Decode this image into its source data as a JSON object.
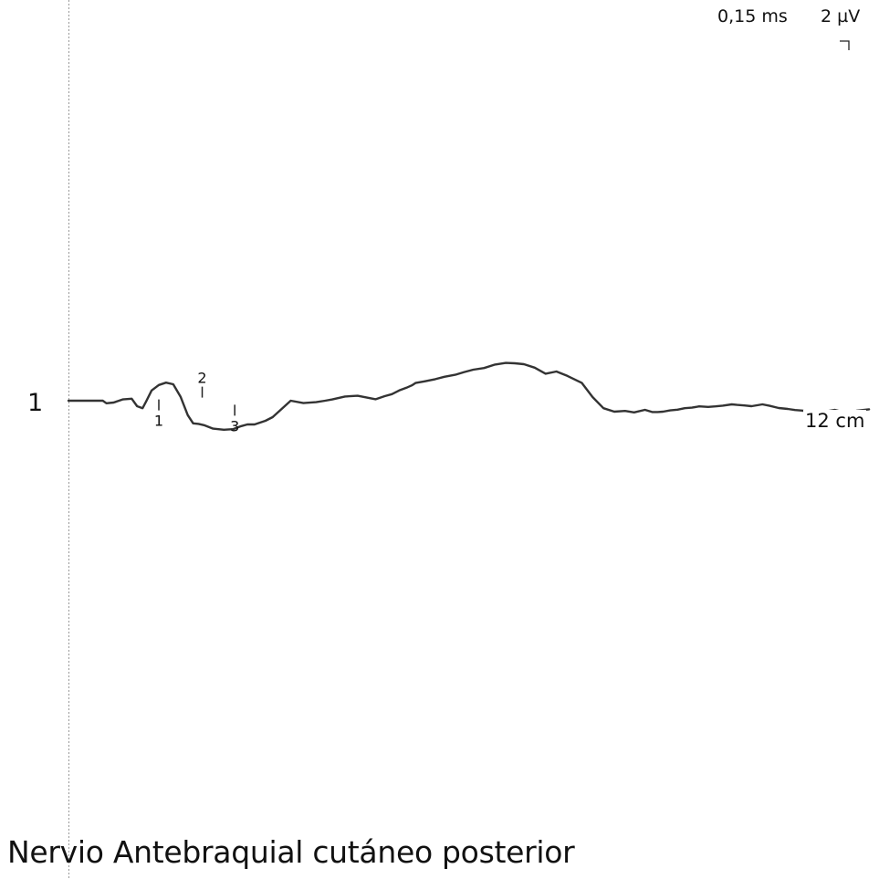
{
  "title": "Nervio Antebraquial cutáneo posterior",
  "scale": {
    "time": "0,15 ms",
    "amplitude": "2 µV"
  },
  "trace": {
    "label": "1",
    "distance": "12 cm"
  },
  "colors": {
    "trace": "#333333",
    "baseline": "#9a9a9a"
  },
  "chart_data": {
    "type": "line",
    "title": "Nervio Antebraquial cutáneo posterior",
    "x_unit": "ms",
    "y_unit": "µV",
    "x_per_div": 0.15,
    "y_per_div": 2,
    "xlim": [
      0,
      4.47
    ],
    "series": [
      {
        "name": "1",
        "x": [
          0.0,
          0.19,
          0.21,
          0.25,
          0.3,
          0.35,
          0.38,
          0.41,
          0.43,
          0.46,
          0.5,
          0.54,
          0.58,
          0.62,
          0.66,
          0.69,
          0.72,
          0.75,
          0.8,
          0.86,
          0.91,
          0.95,
          0.99,
          1.03,
          1.09,
          1.13,
          1.23,
          1.3,
          1.37,
          1.42,
          1.46,
          1.53,
          1.6,
          1.7,
          1.75,
          1.79,
          1.83,
          1.87,
          1.9,
          1.92,
          1.97,
          2.03,
          2.08,
          2.14,
          2.19,
          2.24,
          2.3,
          2.36,
          2.42,
          2.47,
          2.52,
          2.58,
          2.64,
          2.7,
          2.76,
          2.84,
          2.9,
          2.96,
          3.02,
          3.08,
          3.13,
          3.19,
          3.23,
          3.26,
          3.29,
          3.33,
          3.37,
          3.41,
          3.45,
          3.49,
          3.54,
          3.58,
          3.62,
          3.67,
          3.7,
          3.74,
          3.78,
          3.81,
          3.84,
          3.88,
          3.93,
          3.98,
          4.02,
          4.06,
          4.12,
          4.18,
          4.24,
          4.3,
          4.36,
          4.43
        ],
        "y": [
          0.0,
          0.0,
          -0.14,
          -0.1,
          0.07,
          0.11,
          -0.3,
          -0.41,
          -0.04,
          0.56,
          0.86,
          0.99,
          0.9,
          0.22,
          -0.79,
          -1.24,
          -1.27,
          -1.34,
          -1.53,
          -1.59,
          -1.56,
          -1.41,
          -1.3,
          -1.3,
          -1.1,
          -0.9,
          0.0,
          -0.13,
          -0.08,
          0.0,
          0.07,
          0.23,
          0.27,
          0.08,
          0.25,
          0.36,
          0.56,
          0.71,
          0.84,
          0.97,
          1.06,
          1.18,
          1.31,
          1.42,
          1.57,
          1.7,
          1.79,
          1.98,
          2.07,
          2.05,
          2.0,
          1.81,
          1.48,
          1.6,
          1.36,
          0.98,
          0.2,
          -0.41,
          -0.6,
          -0.56,
          -0.64,
          -0.5,
          -0.62,
          -0.62,
          -0.6,
          -0.53,
          -0.49,
          -0.41,
          -0.38,
          -0.31,
          -0.34,
          -0.31,
          -0.27,
          -0.2,
          -0.23,
          -0.26,
          -0.3,
          -0.25,
          -0.2,
          -0.28,
          -0.4,
          -0.45,
          -0.51,
          -0.54,
          -0.67,
          -0.6,
          -0.5,
          -0.65,
          -0.55,
          -0.47
        ]
      }
    ],
    "markers": [
      {
        "label": "1",
        "x": 0.5,
        "y": -0.23
      },
      {
        "label": "2",
        "x": 0.74,
        "y": 0.47
      },
      {
        "label": "3",
        "x": 0.92,
        "y": -0.52
      }
    ]
  }
}
